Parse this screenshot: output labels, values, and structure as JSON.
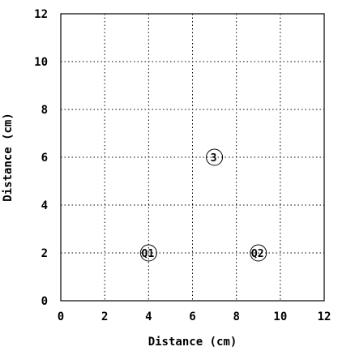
{
  "chart_data": {
    "type": "scatter",
    "title": "",
    "xlabel": "Distance (cm)",
    "ylabel": "Distance (cm)",
    "xlim": [
      0,
      12
    ],
    "ylim": [
      0,
      12
    ],
    "xticks": [
      0,
      2,
      4,
      6,
      8,
      10,
      12
    ],
    "yticks": [
      0,
      2,
      4,
      6,
      8,
      10,
      12
    ],
    "grid": true,
    "points": [
      {
        "label": "Q1",
        "x": 4,
        "y": 2
      },
      {
        "label": "Q2",
        "x": 9,
        "y": 2
      },
      {
        "label": "3",
        "x": 7,
        "y": 6
      }
    ]
  }
}
